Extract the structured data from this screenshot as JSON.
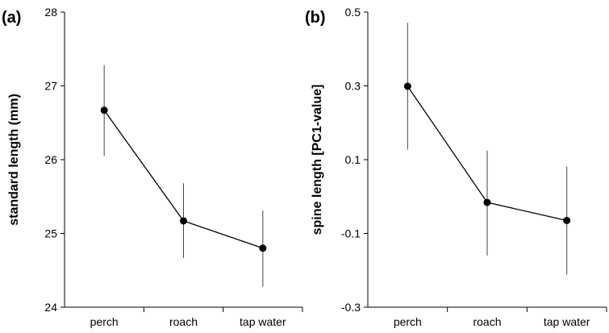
{
  "chart_data": [
    {
      "type": "line",
      "panel_label": "(a)",
      "ylabel": "standard length (mm)",
      "xlabel": "",
      "categories": [
        "perch",
        "roach",
        "tap water"
      ],
      "ylim": [
        24,
        28
      ],
      "yticks": [
        24,
        25,
        26,
        27,
        28
      ],
      "ytick_labels": [
        "24",
        "25",
        "26",
        "27",
        "28"
      ],
      "grid": false,
      "series": [
        {
          "values": [
            26.67,
            25.17,
            24.8
          ],
          "error_low": [
            26.05,
            24.67,
            24.28
          ],
          "error_high": [
            27.28,
            25.68,
            25.31
          ]
        }
      ]
    },
    {
      "type": "line",
      "panel_label": "(b)",
      "ylabel": "spine length [PC1-value]",
      "xlabel": "",
      "categories": [
        "perch",
        "roach",
        "tap water"
      ],
      "ylim": [
        -0.3,
        0.5
      ],
      "yticks": [
        -0.3,
        -0.1,
        0.1,
        0.3,
        0.5
      ],
      "ytick_labels": [
        "-0.3",
        "-0.1",
        "0.1",
        "0.3",
        "0.5"
      ],
      "grid": false,
      "series": [
        {
          "values": [
            0.299,
            -0.016,
            -0.065
          ],
          "error_low": [
            0.127,
            -0.16,
            -0.212
          ],
          "error_high": [
            0.471,
            0.125,
            0.081
          ]
        }
      ]
    }
  ]
}
